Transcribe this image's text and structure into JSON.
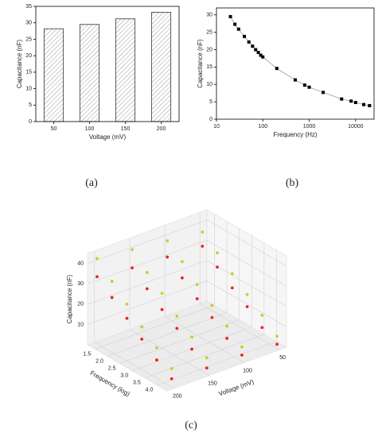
{
  "chart_data": [
    {
      "type": "bar",
      "panel_label": "(a)",
      "x_label": "Voltage (mV)",
      "y_label": "Capacitance (nF)",
      "categories": [
        "50",
        "100",
        "150",
        "200"
      ],
      "values": [
        28.2,
        29.5,
        31.2,
        33.2
      ],
      "color": "#ffffff",
      "ylim": [
        0,
        35
      ],
      "yticks": [
        0,
        5,
        10,
        15,
        20,
        25,
        30,
        35
      ]
    },
    {
      "type": "scatter",
      "panel_label": "(b)",
      "x_label": "Frequency (Hz)",
      "y_label": "Capacitance (nF)",
      "xscale": "log",
      "color": "#000000",
      "line_color": "#999999",
      "x": [
        20,
        25,
        30,
        40,
        50,
        60,
        70,
        80,
        90,
        100,
        200,
        500,
        800,
        1000,
        2000,
        5000,
        8000,
        10000,
        15000,
        20000
      ],
      "values": [
        29.5,
        27.3,
        25.9,
        23.8,
        22.2,
        21,
        20,
        19.2,
        18.4,
        17.9,
        14.6,
        11.3,
        9.8,
        9.2,
        7.7,
        5.8,
        5.2,
        4.8,
        4.2,
        3.9
      ],
      "xlim": [
        10,
        25000
      ],
      "xticks": [
        10,
        100,
        1000,
        10000
      ],
      "ylim": [
        0,
        32
      ],
      "yticks": [
        0,
        5,
        10,
        15,
        20,
        25,
        30
      ]
    },
    {
      "type": "scatter3d",
      "panel_label": "(c)",
      "x_label": "Voltage (mV)",
      "y_label": "Frequency (log)",
      "z_label": "Capacitance (nF)",
      "xlim": [
        40,
        210
      ],
      "xticks": [
        50,
        100,
        150,
        200
      ],
      "ylim": [
        1.2,
        4.4
      ],
      "yticks": [
        1.5,
        {
          "value": 2,
          "label": "2.0"
        },
        2.5,
        {
          "value": 3,
          "label": "3.0"
        },
        3.5,
        {
          "value": 4,
          "label": "4.0"
        }
      ],
      "zlim": [
        0,
        45
      ],
      "zticks": [
        10,
        20,
        30,
        40
      ],
      "series": [
        {
          "color": "#c3d128",
          "x": [
            200,
            200,
            200,
            200,
            200,
            200,
            150,
            150,
            150,
            150,
            150,
            150,
            100,
            100,
            100,
            100,
            100,
            100,
            50,
            50,
            50,
            50,
            50,
            50
          ],
          "y": [
            1.3,
            1.9,
            2.5,
            3.1,
            3.7,
            4.3,
            1.3,
            1.9,
            2.5,
            3.1,
            3.7,
            4.3,
            1.3,
            1.9,
            2.5,
            3.1,
            3.7,
            4.3,
            1.3,
            1.9,
            2.5,
            3.1,
            3.7,
            4.3
          ],
          "z": [
            42,
            35,
            28,
            21,
            15,
            9,
            40,
            33,
            27,
            20,
            14,
            8,
            38,
            32,
            25,
            19,
            13,
            7,
            36,
            30,
            24,
            18,
            12,
            6
          ]
        },
        {
          "color": "#e8232a",
          "x": [
            200,
            200,
            200,
            200,
            200,
            200,
            150,
            150,
            150,
            150,
            150,
            150,
            100,
            100,
            100,
            100,
            100,
            100,
            50,
            50,
            50,
            50,
            50,
            50
          ],
          "y": [
            1.3,
            1.9,
            2.5,
            3.1,
            3.7,
            4.3,
            1.3,
            1.9,
            2.5,
            3.1,
            3.7,
            4.3,
            1.3,
            1.9,
            2.5,
            3.1,
            3.7,
            4.3,
            1.3,
            1.9,
            2.5,
            3.1,
            3.7,
            4.3
          ],
          "z": [
            33,
            27,
            21,
            15,
            9,
            4,
            31,
            25,
            19,
            14,
            8,
            3,
            30,
            24,
            18,
            13,
            7,
            3,
            29,
            23,
            17,
            12,
            6,
            2
          ]
        }
      ]
    }
  ]
}
